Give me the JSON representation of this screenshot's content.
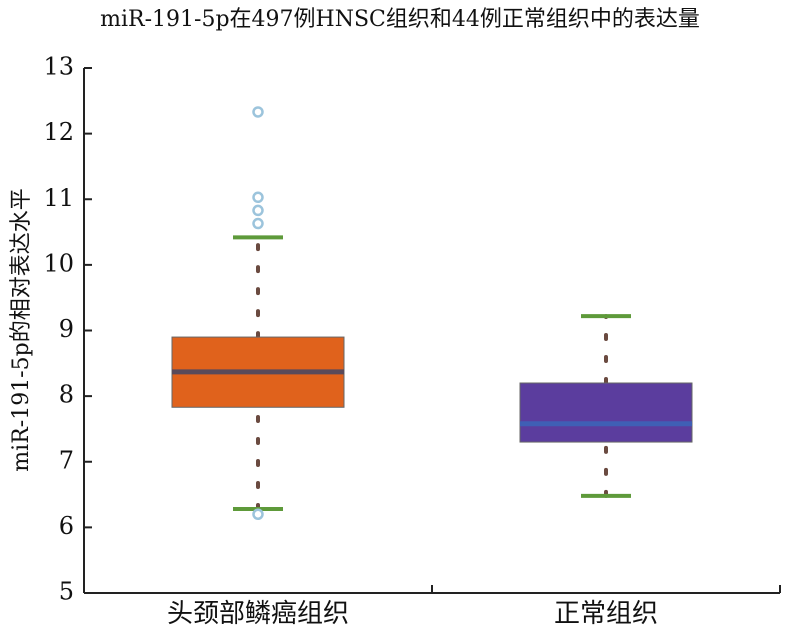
{
  "chart_data": {
    "type": "box",
    "title": "miR-191-5p在497例HNSC组织和44例正常组织中的表达量",
    "y_label": "miR-191-5p的相对表达水平",
    "categories": [
      "头颈部鳞癌组织",
      "正常组织"
    ],
    "boxes": [
      {
        "whislo": 6.28,
        "q1": 7.83,
        "median": 8.37,
        "q3": 8.9,
        "whishi": 10.42,
        "fliers": [
          12.33,
          11.03,
          10.83,
          10.63,
          6.2
        ],
        "color": "#e0621c",
        "median_color": "#5a4a5a"
      },
      {
        "whislo": 6.48,
        "q1": 7.3,
        "median": 7.58,
        "q3": 8.2,
        "whishi": 9.22,
        "fliers": [],
        "color": "#5b3d9e",
        "median_color": "#3f5fb5"
      }
    ],
    "whisker_color": "#5e9a3a",
    "flier_color": "#9cc4dc",
    "ylim": [
      5,
      13
    ],
    "yticks": [
      5,
      6,
      7,
      8,
      9,
      10,
      11,
      12,
      13
    ]
  }
}
